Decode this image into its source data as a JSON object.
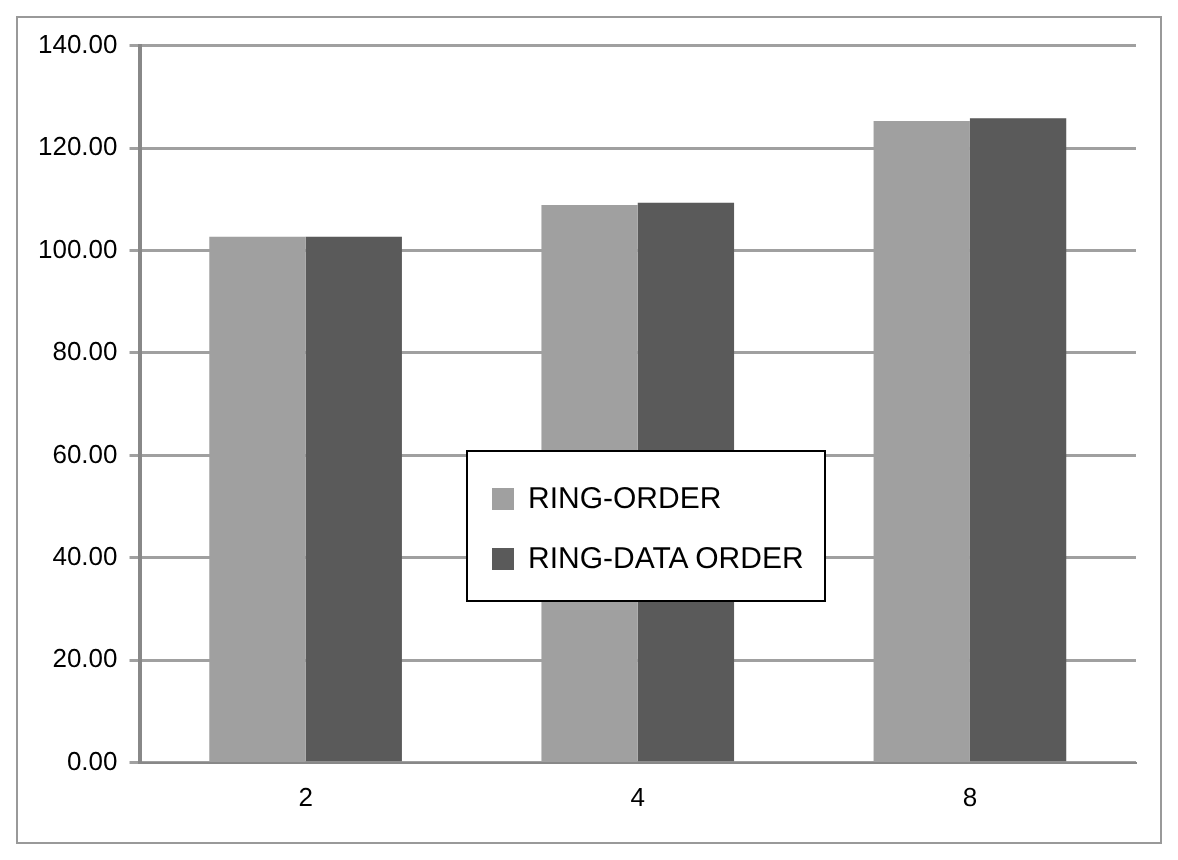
{
  "chart_data": {
    "type": "bar",
    "categories": [
      "2",
      "4",
      "8"
    ],
    "series": [
      {
        "name": "RING-ORDER",
        "color": "#a0a0a0",
        "values": [
          102.7,
          108.9,
          125.3
        ]
      },
      {
        "name": "RING-DATA ORDER",
        "color": "#5a5a5a",
        "values": [
          102.7,
          109.3,
          125.8
        ]
      }
    ],
    "ylim": [
      0,
      140
    ],
    "yticks": [
      {
        "value": 0,
        "label": "0.00"
      },
      {
        "value": 20,
        "label": "20.00"
      },
      {
        "value": 40,
        "label": "40.00"
      },
      {
        "value": 60,
        "label": "60.00"
      },
      {
        "value": 80,
        "label": "80.00"
      },
      {
        "value": 100,
        "label": "100.00"
      },
      {
        "value": 120,
        "label": "120.00"
      },
      {
        "value": 140,
        "label": "140.00"
      }
    ],
    "grid": "y",
    "legend": "center"
  }
}
